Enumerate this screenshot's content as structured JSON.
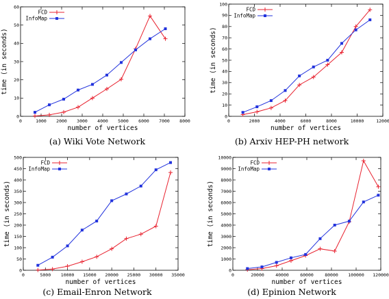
{
  "figure": {
    "captions": [
      "(a) Wiki Vote Network",
      "(b) Arxiv HEP-PH network",
      "(c) Email-Enron Network",
      "(d) Epinion Network"
    ]
  },
  "colors": {
    "fcd": "#e8222f",
    "infomap": "#2233dd",
    "axis": "#000000"
  },
  "chart_data": [
    {
      "type": "line",
      "title": "",
      "xlabel": "number of vertices",
      "ylabel": "time (in seconds)",
      "xlim": [
        0,
        8000
      ],
      "ylim": [
        0,
        60
      ],
      "xticks": [
        0,
        1000,
        2000,
        3000,
        4000,
        5000,
        6000,
        7000,
        8000
      ],
      "yticks": [
        0,
        10,
        20,
        30,
        40,
        50,
        60
      ],
      "legend": "top-left",
      "series": [
        {
          "name": "FCD",
          "color": "#e8222f",
          "marker": "plus",
          "x": [
            700,
            1400,
            2100,
            2800,
            3500,
            4200,
            4900,
            5600,
            6300,
            7050
          ],
          "y": [
            0.2,
            0.8,
            2.3,
            5,
            10,
            15,
            20.3,
            37,
            55,
            42.5
          ]
        },
        {
          "name": "InfoMap",
          "color": "#2233dd",
          "marker": "square",
          "x": [
            700,
            1400,
            2100,
            2800,
            3500,
            4200,
            4900,
            5600,
            6300,
            7050
          ],
          "y": [
            2.2,
            6.3,
            9.4,
            14.4,
            17.5,
            22.6,
            29.5,
            36.4,
            42.5,
            48
          ]
        }
      ]
    },
    {
      "type": "line",
      "title": "",
      "xlabel": "number of vertices",
      "ylabel": "time (in seconds)",
      "xlim": [
        0,
        12000
      ],
      "ylim": [
        0,
        100
      ],
      "xticks": [
        0,
        2000,
        4000,
        6000,
        8000,
        10000,
        12000
      ],
      "yticks": [
        0,
        10,
        20,
        30,
        40,
        50,
        60,
        70,
        80,
        90,
        100
      ],
      "legend": "top-left",
      "series": [
        {
          "name": "FCD",
          "color": "#e8222f",
          "marker": "plus",
          "x": [
            1100,
            2200,
            3300,
            4400,
            5500,
            6600,
            7700,
            8800,
            9900,
            11000
          ],
          "y": [
            1.5,
            4,
            7.5,
            14,
            28,
            35,
            46,
            57,
            80,
            95
          ]
        },
        {
          "name": "InfoMap",
          "color": "#2233dd",
          "marker": "square",
          "x": [
            1100,
            2200,
            3300,
            4400,
            5500,
            6600,
            7700,
            8800,
            9900,
            11000
          ],
          "y": [
            3.5,
            8.5,
            14,
            23,
            36,
            44,
            50,
            65,
            77,
            86
          ]
        }
      ]
    },
    {
      "type": "line",
      "title": "",
      "xlabel": "number of vertices",
      "ylabel": "time (in seconds)",
      "xlim": [
        0,
        35000
      ],
      "ylim": [
        0,
        500
      ],
      "xticks": [
        0,
        5000,
        10000,
        15000,
        20000,
        25000,
        30000,
        35000
      ],
      "yticks": [
        0,
        50,
        100,
        150,
        200,
        250,
        300,
        350,
        400,
        450,
        500
      ],
      "legend": "top-left",
      "series": [
        {
          "name": "FCD",
          "color": "#e8222f",
          "marker": "plus",
          "x": [
            3300,
            6600,
            10000,
            13300,
            16600,
            20000,
            23300,
            26600,
            30000,
            33300
          ],
          "y": [
            1,
            5,
            18,
            38,
            60,
            95,
            140,
            160,
            195,
            433
          ]
        },
        {
          "name": "InfoMap",
          "color": "#2233dd",
          "marker": "square",
          "x": [
            3300,
            6600,
            10000,
            13300,
            16600,
            20000,
            23300,
            26600,
            30000,
            33300
          ],
          "y": [
            22,
            58,
            108,
            178,
            218,
            308,
            338,
            373,
            445,
            477
          ]
        }
      ]
    },
    {
      "type": "line",
      "title": "",
      "xlabel": "number of vertices",
      "ylabel": "time (in seconds)",
      "xlim": [
        0,
        120000
      ],
      "ylim": [
        0,
        10000
      ],
      "xticks": [
        0,
        20000,
        40000,
        60000,
        80000,
        100000,
        120000
      ],
      "yticks": [
        0,
        1000,
        2000,
        3000,
        4000,
        5000,
        6000,
        7000,
        8000,
        9000,
        10000
      ],
      "legend": "top-left",
      "series": [
        {
          "name": "FCD",
          "color": "#e8222f",
          "marker": "plus",
          "x": [
            11800,
            23600,
            35400,
            47200,
            59000,
            70800,
            82600,
            94400,
            106000,
            118000
          ],
          "y": [
            50,
            150,
            400,
            850,
            1300,
            1900,
            1700,
            4300,
            9700,
            7400
          ]
        },
        {
          "name": "InfoMap",
          "color": "#2233dd",
          "marker": "square",
          "x": [
            11800,
            23600,
            35400,
            47200,
            59000,
            70800,
            82600,
            94400,
            106000,
            118000
          ],
          "y": [
            150,
            300,
            700,
            1100,
            1400,
            2800,
            4000,
            4350,
            6050,
            6650
          ]
        }
      ]
    }
  ]
}
